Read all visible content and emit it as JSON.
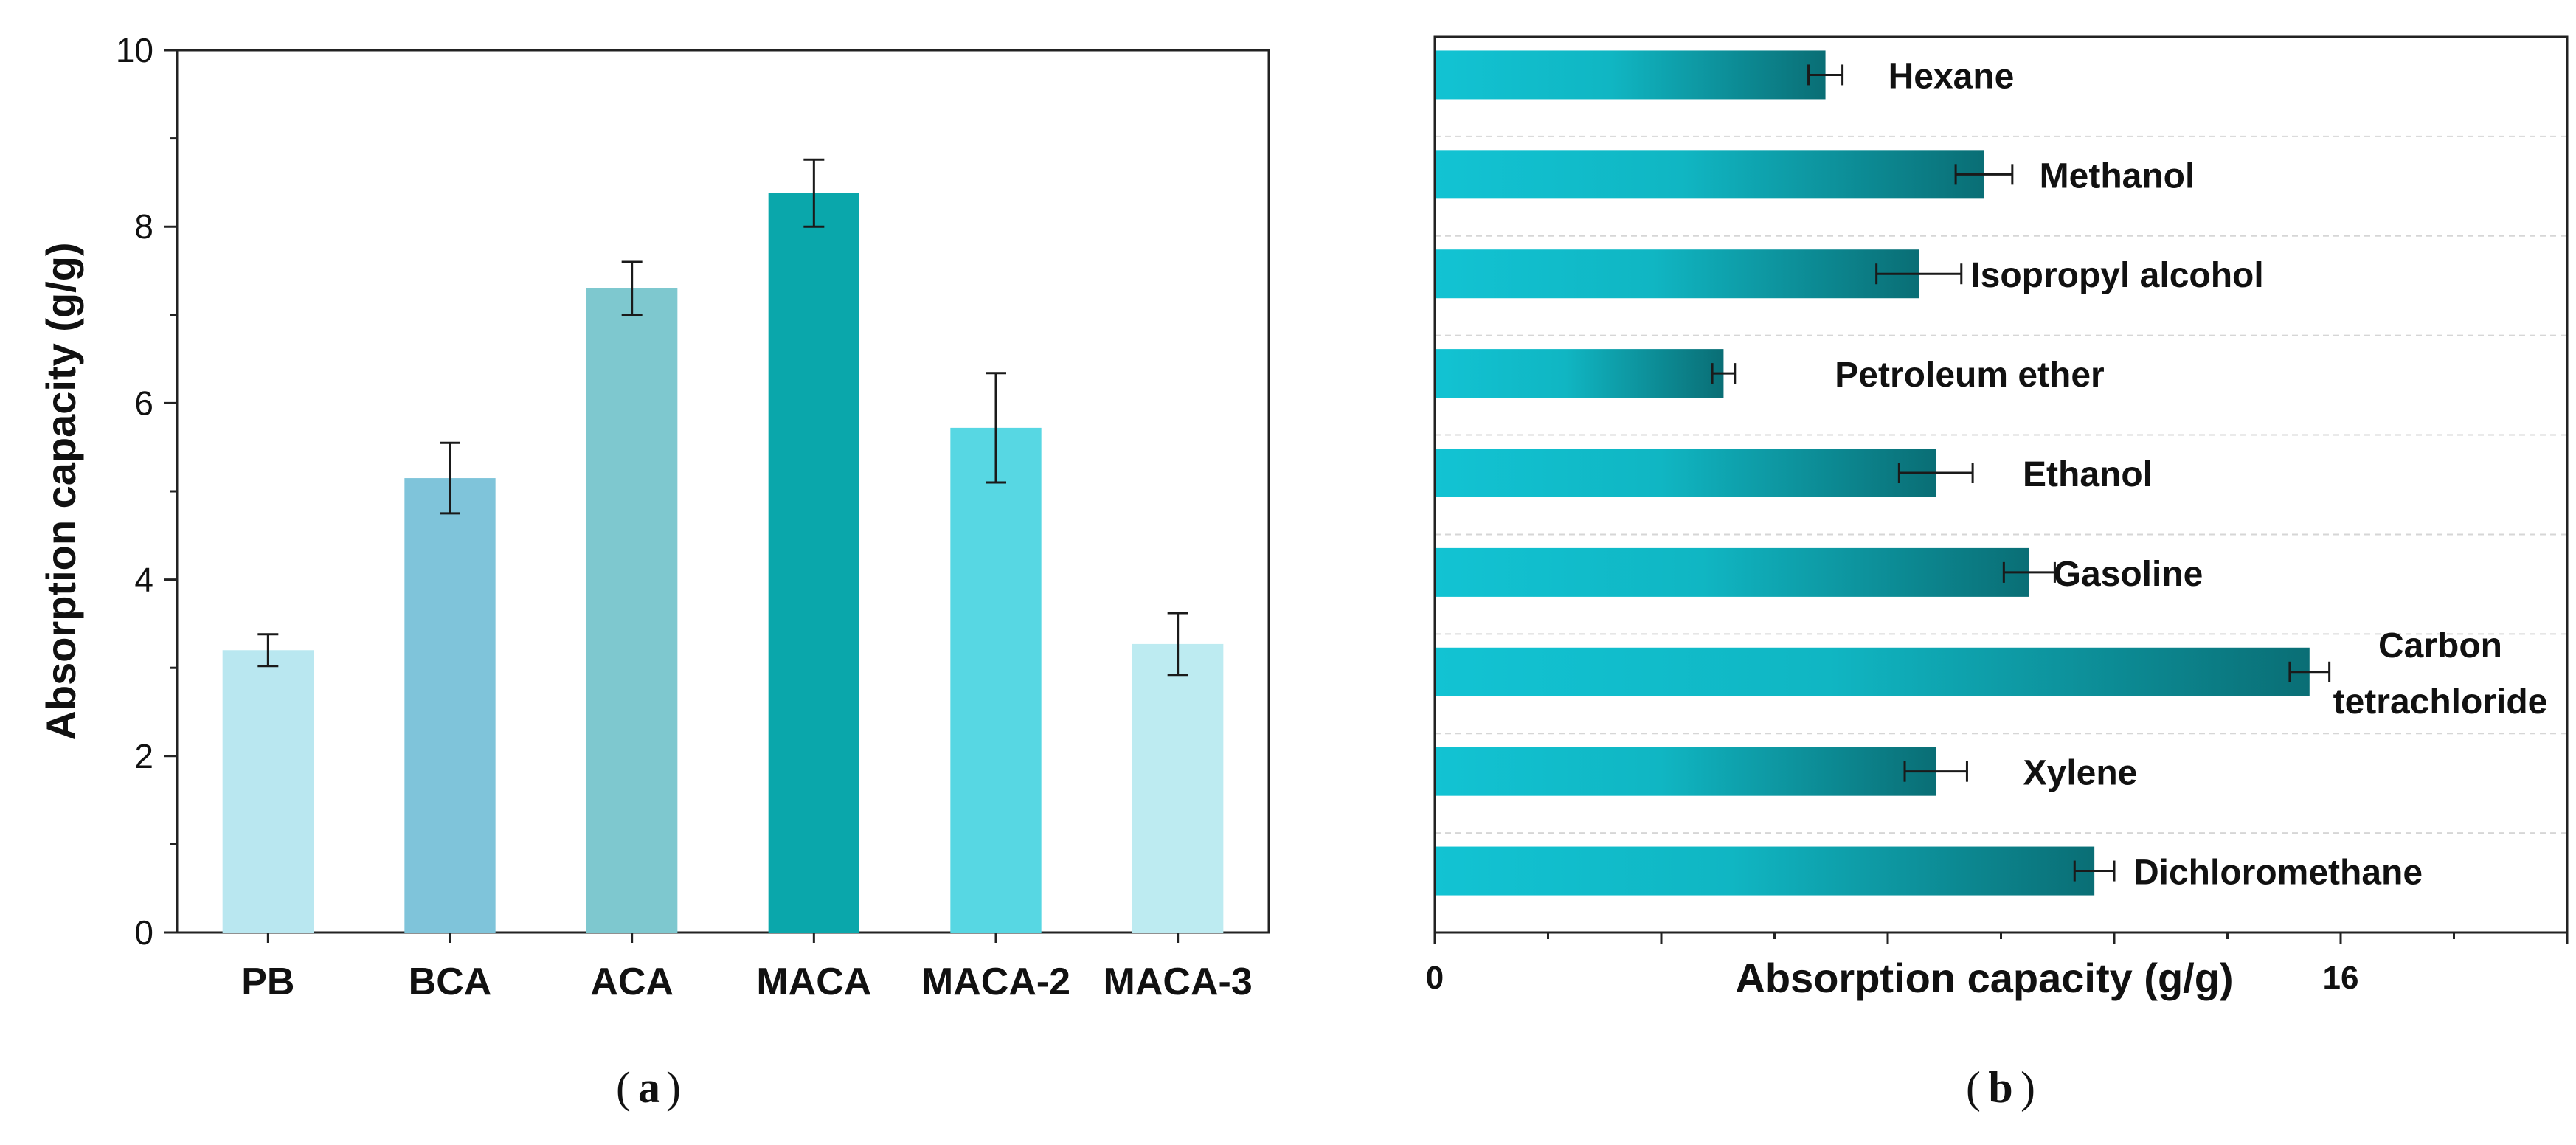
{
  "chart_data": [
    {
      "type": "bar",
      "panel_label": "a",
      "ylabel": "Absorption capacity (g/g)",
      "xlabel": "",
      "ylim": [
        0,
        10
      ],
      "yticks": [
        "0",
        "2",
        "4",
        "6",
        "8",
        "10"
      ],
      "categories": [
        "PB",
        "BCA",
        "ACA",
        "MACA",
        "MACA-2",
        "MACA-3"
      ],
      "values": [
        3.2,
        5.15,
        7.3,
        8.38,
        5.72,
        3.27
      ],
      "errors": [
        0.18,
        0.4,
        0.3,
        0.38,
        0.62,
        0.35
      ],
      "colors": [
        "#b9e7f0",
        "#7fc4da",
        "#7ec8cf",
        "#0aa7ab",
        "#57d7e3",
        "#bdebf1"
      ],
      "error_color": "#1a1a1a",
      "grid": false
    },
    {
      "type": "bar",
      "orientation": "horizontal",
      "panel_label": "b",
      "xlabel": "Absorption capacity (g/g)",
      "ylabel": "",
      "xlim": [
        0,
        20
      ],
      "xticks": [
        "0",
        "16"
      ],
      "categories": [
        "Hexane",
        "Methanol",
        "Isopropyl alcohol",
        "Petroleum ether",
        "Ethanol",
        "Gasoline",
        "Carbon tetrachloride",
        "Xylene",
        "Dichloromethane"
      ],
      "label_lines": [
        [
          "Hexane"
        ],
        [
          "Methanol"
        ],
        [
          "Isopropyl alcohol"
        ],
        [
          "Petroleum ether"
        ],
        [
          "Ethanol"
        ],
        [
          "Gasoline"
        ],
        [
          "Carbon",
          "tetrachloride"
        ],
        [
          "Xylene"
        ],
        [
          "Dichloromethane"
        ]
      ],
      "values": [
        6.9,
        9.7,
        8.55,
        5.1,
        8.85,
        10.5,
        15.45,
        8.85,
        11.65
      ],
      "errors": [
        0.3,
        0.5,
        0.75,
        0.2,
        0.65,
        0.45,
        0.35,
        0.55,
        0.35
      ],
      "gradient": [
        "#12c3d3",
        "#0a6e75"
      ],
      "error_color": "#1a1a1a",
      "grid": "horizontal dashed separators"
    }
  ]
}
